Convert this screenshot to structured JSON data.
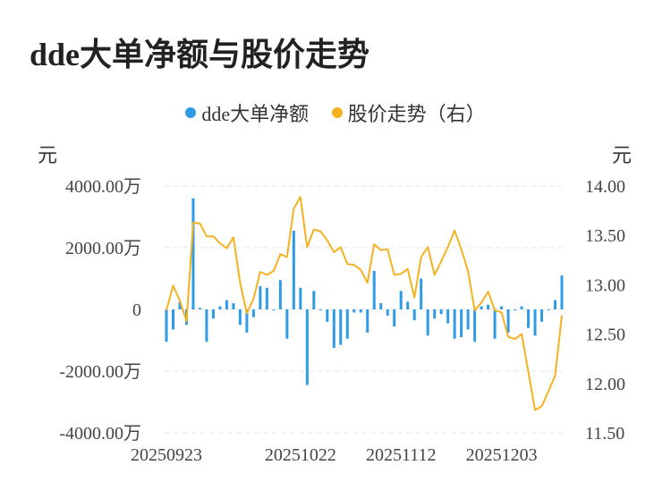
{
  "title": "dde大单净额与股价走势",
  "chart_data": {
    "type": "bar+line",
    "legend": [
      {
        "name": "dde大单净额",
        "color": "#2f9be6"
      },
      {
        "name": "股价走势（右）",
        "color": "#f5b220"
      }
    ],
    "left_unit": "元",
    "right_unit": "元",
    "y_left": {
      "min": -4000,
      "max": 4000,
      "ticks": [
        4000,
        2000,
        0,
        -2000,
        -4000
      ],
      "tick_labels": [
        "4000.00万",
        "2000.00万",
        "0",
        "-2000.00万",
        "-4000.00万"
      ]
    },
    "y_right": {
      "min": 11.5,
      "max": 14.0,
      "ticks": [
        14.0,
        13.5,
        13.0,
        12.5,
        12.0,
        11.5
      ],
      "tick_labels": [
        "14.00",
        "13.50",
        "13.00",
        "12.50",
        "12.00",
        "11.50"
      ]
    },
    "x_tick_labels": [
      {
        "label": "20250923",
        "index": 0
      },
      {
        "label": "20251022",
        "index": 20
      },
      {
        "label": "20251112",
        "index": 35
      },
      {
        "label": "20251203",
        "index": 50
      }
    ],
    "grid": true,
    "series": [
      {
        "name": "dde大单净额",
        "type": "bar",
        "values": [
          -1050,
          -650,
          250,
          -500,
          3600,
          50,
          -1050,
          -300,
          100,
          300,
          200,
          -500,
          -750,
          -250,
          750,
          700,
          0,
          950,
          -950,
          2550,
          700,
          -2450,
          600,
          0,
          -400,
          -1250,
          -1150,
          -950,
          -100,
          -100,
          -750,
          1250,
          200,
          -200,
          -550,
          600,
          250,
          -350,
          1000,
          -850,
          -300,
          -150,
          -450,
          -950,
          -900,
          -650,
          -1050,
          100,
          150,
          -950,
          100,
          -750,
          0,
          100,
          -600,
          -850,
          -400,
          0,
          300,
          1100
        ]
      },
      {
        "name": "股价走势（右）",
        "type": "line",
        "values": [
          12.74,
          12.99,
          12.84,
          12.63,
          13.63,
          13.62,
          13.49,
          13.49,
          13.42,
          13.37,
          13.48,
          13.02,
          12.71,
          12.86,
          13.13,
          13.1,
          13.14,
          13.31,
          13.28,
          13.77,
          13.89,
          13.38,
          13.56,
          13.54,
          13.45,
          13.33,
          13.38,
          13.21,
          13.2,
          13.15,
          13.02,
          13.41,
          13.35,
          13.36,
          13.1,
          13.11,
          13.16,
          12.87,
          13.28,
          13.38,
          13.1,
          13.24,
          13.38,
          13.55,
          13.36,
          13.14,
          12.74,
          12.82,
          12.93,
          12.74,
          12.72,
          12.47,
          12.45,
          12.5,
          12.12,
          11.73,
          11.77,
          11.92,
          12.08,
          12.69
        ]
      }
    ]
  }
}
